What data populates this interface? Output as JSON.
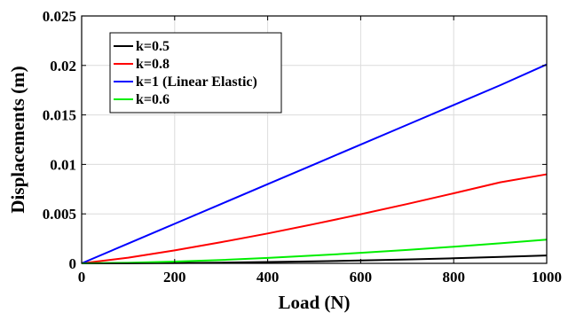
{
  "chart_data": {
    "type": "line",
    "title": "",
    "xlabel": "Load (N)",
    "ylabel": "Displacements (m)",
    "xlim": [
      0,
      1000
    ],
    "ylim": [
      0,
      0.025
    ],
    "xticks": [
      0,
      200,
      400,
      600,
      800,
      1000
    ],
    "xtick_labels": [
      "0",
      "200",
      "400",
      "600",
      "800",
      "1000"
    ],
    "yticks": [
      0,
      0.005,
      0.01,
      0.015,
      0.02,
      0.025
    ],
    "ytick_labels": [
      "0",
      "0.005",
      "0.01",
      "0.015",
      "0.02",
      "0.025"
    ],
    "grid": true,
    "legend_position": "top-left",
    "x": [
      0,
      100,
      200,
      300,
      400,
      500,
      600,
      700,
      800,
      900,
      1000
    ],
    "series": [
      {
        "name": "k=0.5",
        "color": "#000000",
        "values": [
          0,
          1e-05,
          3e-05,
          7e-05,
          0.00013,
          0.0002,
          0.00029,
          0.00039,
          0.00051,
          0.00065,
          0.0008
        ]
      },
      {
        "name": "k=0.8",
        "color": "#ff0000",
        "values": [
          0,
          0.00057,
          0.00131,
          0.00214,
          0.00302,
          0.00397,
          0.00496,
          0.006,
          0.00708,
          0.00819,
          0.009
        ]
      },
      {
        "name": "k=1 (Linear Elastic)",
        "color": "#0000ff",
        "values": [
          0,
          0.002,
          0.004,
          0.006,
          0.008,
          0.01,
          0.012,
          0.014,
          0.016,
          0.018,
          0.0201
        ]
      },
      {
        "name": "k=0.6",
        "color": "#00ee00",
        "values": [
          0,
          6e-05,
          0.00018,
          0.00034,
          0.00055,
          0.00079,
          0.00106,
          0.00136,
          0.00168,
          0.00203,
          0.0024
        ]
      }
    ]
  }
}
